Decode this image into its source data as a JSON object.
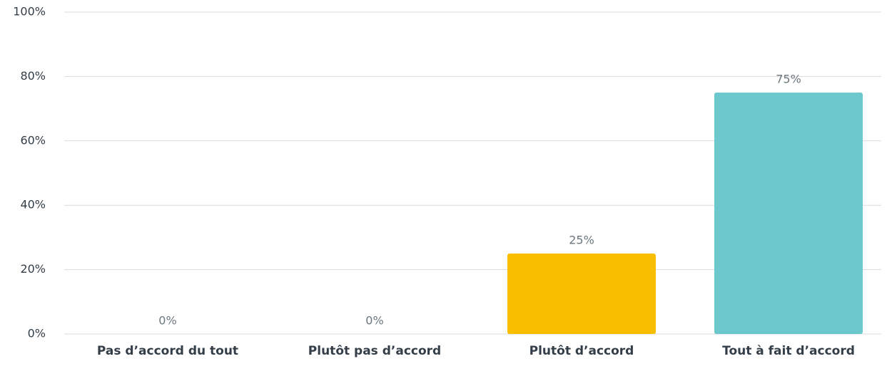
{
  "chart_data": {
    "type": "bar",
    "categories": [
      "Pas d’accord du tout",
      "Plutôt pas d’accord",
      "Plutôt d’accord",
      "Tout à fait d’accord"
    ],
    "values": [
      0,
      0,
      25,
      75
    ],
    "value_labels": [
      "0%",
      "0%",
      "25%",
      "75%"
    ],
    "colors": [
      "#00bf6f",
      "#507cb6",
      "#f9be00",
      "#6bc8cd"
    ],
    "ylim": [
      0,
      100
    ],
    "yticks": [
      {
        "value": 0,
        "label": "0%"
      },
      {
        "value": 20,
        "label": "20%"
      },
      {
        "value": 40,
        "label": "40%"
      },
      {
        "value": 60,
        "label": "60%"
      },
      {
        "value": 80,
        "label": "80%"
      },
      {
        "value": 100,
        "label": "100%"
      }
    ],
    "grid": true
  }
}
